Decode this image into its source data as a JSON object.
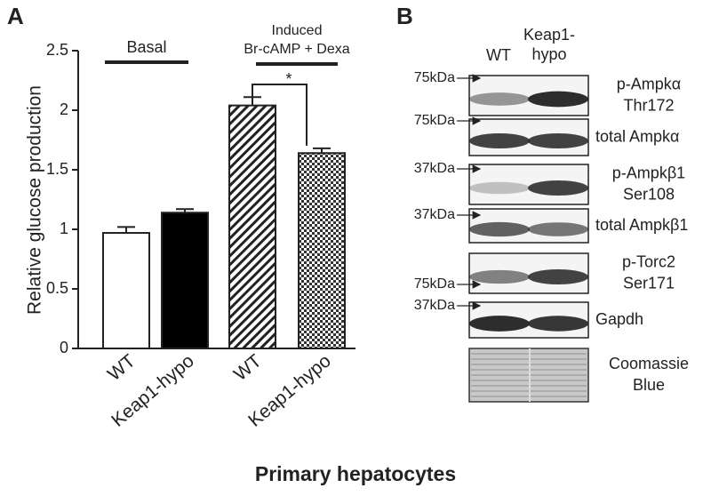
{
  "chart_data": {
    "type": "bar",
    "panel_label": "A",
    "ylabel": "Relative glucose production",
    "xlabel": "Primary hepatocytes",
    "categories": [
      "WT",
      "Keap1-hypo",
      "WT",
      "Keap1-hypo"
    ],
    "values": [
      0.97,
      1.14,
      2.04,
      1.64
    ],
    "errors": [
      0.05,
      0.03,
      0.07,
      0.04
    ],
    "fills": [
      "white",
      "black",
      "hatch",
      "checker"
    ],
    "ylim": [
      0,
      2.5
    ],
    "yticks": [
      0,
      0.5,
      1,
      1.5,
      2,
      2.5
    ],
    "groups": [
      {
        "label": [
          "Basal"
        ]
      },
      {
        "label": [
          "Induced",
          "Br-cAMP + Dexa"
        ]
      }
    ],
    "significance": "*"
  },
  "panel_b": {
    "panel_label": "B",
    "lanes": [
      [
        "WT"
      ],
      [
        "Keap1-",
        "hypo"
      ]
    ],
    "blots": [
      {
        "marker": "75kDa",
        "label": [
          "p-Ampkα",
          "Thr172"
        ]
      },
      {
        "marker": "75kDa",
        "label": [
          "total Ampkα"
        ]
      },
      {
        "marker": "37kDa",
        "label": [
          "p-Ampkβ1",
          "Ser108"
        ]
      },
      {
        "marker": "37kDa",
        "label": [
          "total Ampkβ1"
        ]
      },
      {
        "marker": "75kDa",
        "label": [
          "p-Torc2",
          "Ser171"
        ]
      },
      {
        "marker": "37kDa",
        "label": [
          "Gapdh"
        ]
      },
      {
        "label": [
          "Coomassie",
          "Blue"
        ]
      }
    ]
  }
}
